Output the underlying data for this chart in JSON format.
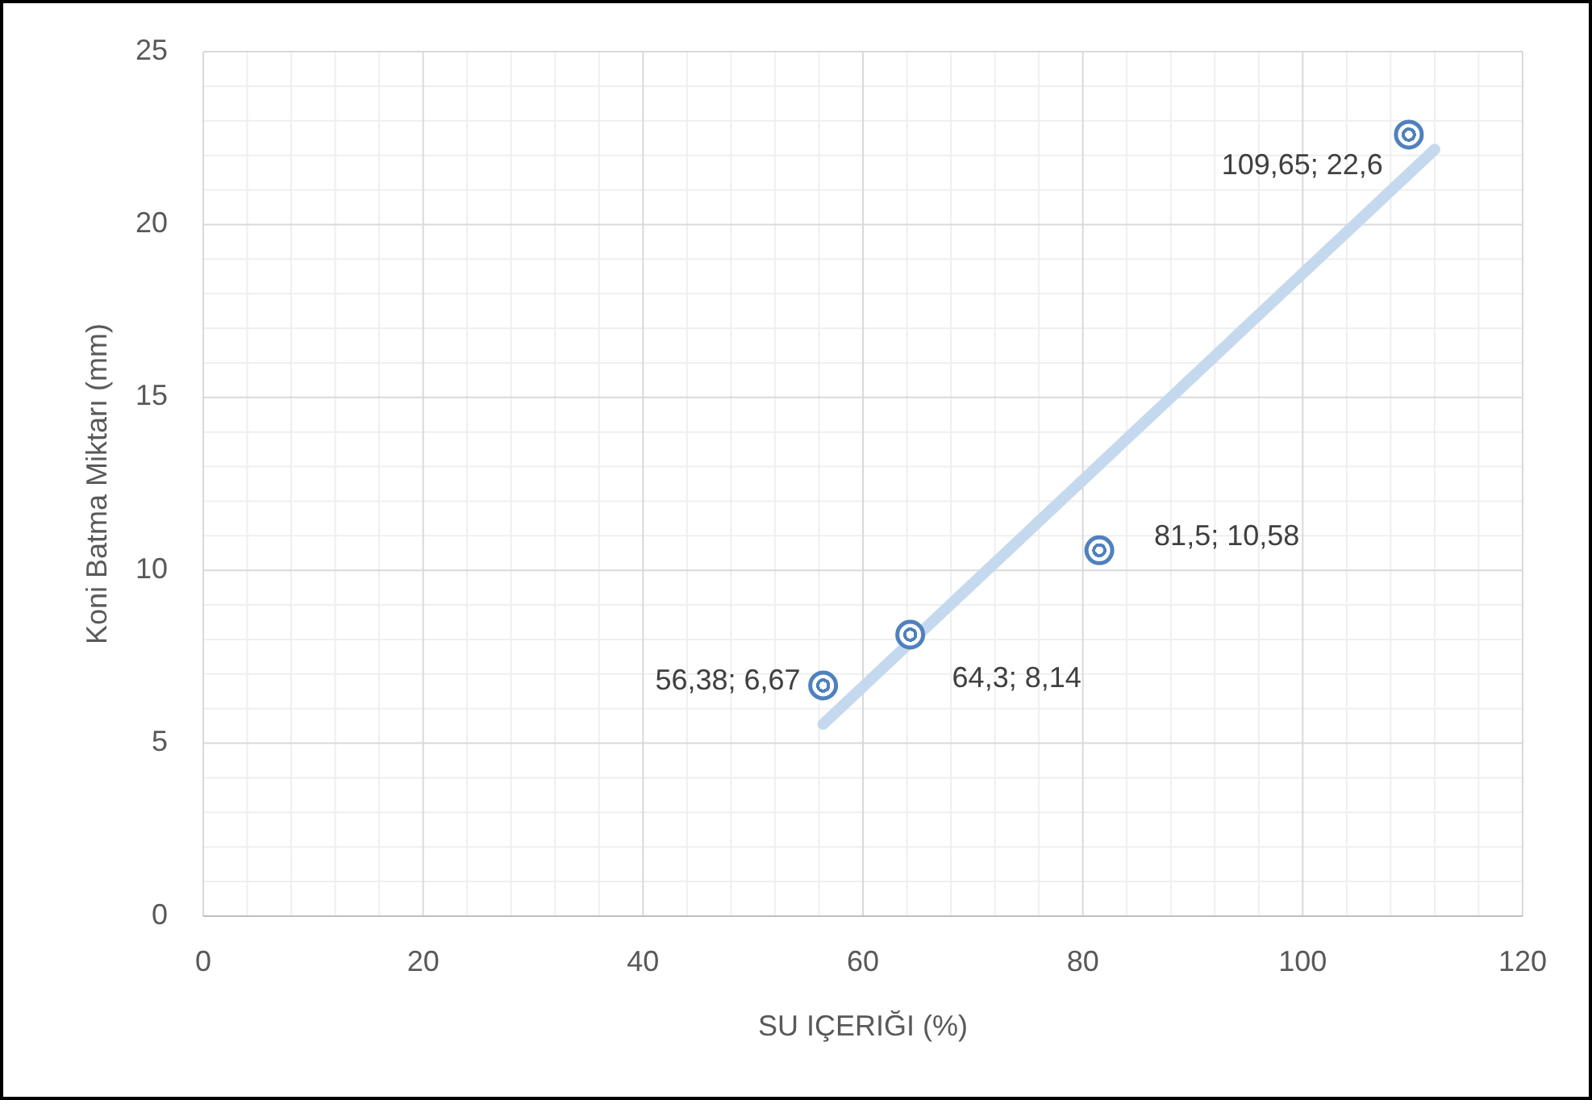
{
  "chart_data": {
    "type": "scatter",
    "xlabel": "SU IÇERIĞI (%)",
    "ylabel": "Koni Batma Miktarı (mm)",
    "xlim": [
      0,
      120
    ],
    "ylim": [
      0,
      25
    ],
    "xticks": [
      0,
      20,
      40,
      60,
      80,
      100,
      120
    ],
    "yticks": [
      0,
      5,
      10,
      15,
      20,
      25
    ],
    "grid": true,
    "series": [
      {
        "marker": "circle",
        "color": "#4f81bd",
        "x": [
          56.38,
          64.3,
          81.5,
          109.65
        ],
        "values": [
          6.67,
          8.14,
          10.58,
          22.6
        ],
        "value_labels": [
          "56,38; 6,67",
          "64,3; 8,14",
          "81,5; 10,58",
          "109,65; 22,6"
        ]
      },
      {
        "type": "line",
        "color": "#c5d9ee",
        "x": [
          56.38,
          112
        ],
        "values": [
          5.55,
          22.17
        ]
      }
    ]
  }
}
